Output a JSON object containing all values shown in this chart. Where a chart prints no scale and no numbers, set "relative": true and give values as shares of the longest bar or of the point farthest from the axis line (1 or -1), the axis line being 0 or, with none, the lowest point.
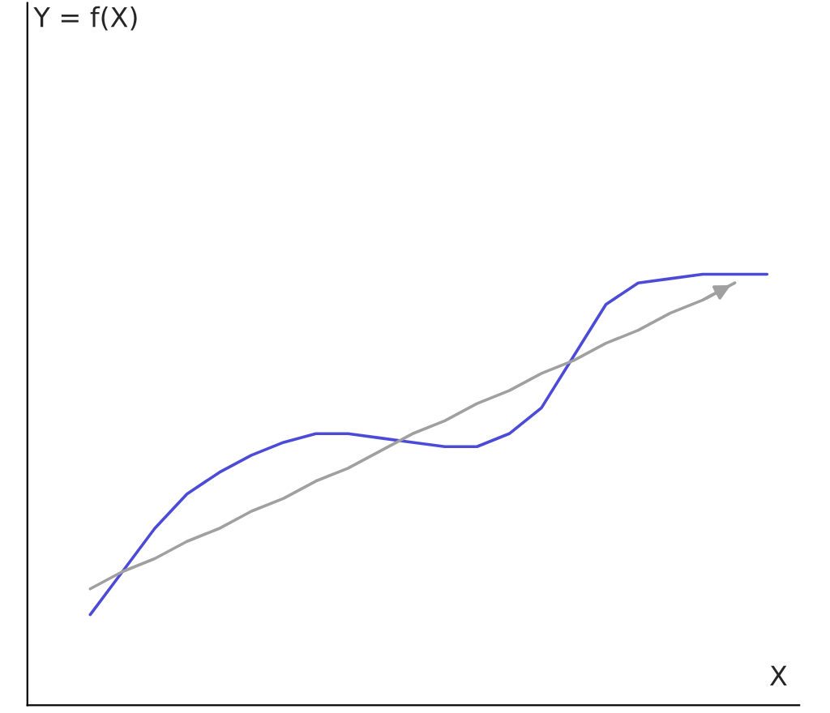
{
  "chart_data": {
    "type": "line",
    "relative": true,
    "xlabel": "X",
    "annotations": [
      "Y = f(X)"
    ],
    "legend": false,
    "categories": [
      null,
      null,
      null,
      null,
      null,
      null,
      null,
      null,
      null,
      null,
      null,
      null,
      null,
      null,
      null,
      null,
      null,
      null,
      null,
      null,
      null,
      null
    ],
    "series": [
      {
        "color": "#4b4bd8",
        "values": [
          0.21,
          0.31,
          0.41,
          0.49,
          0.54,
          0.58,
          0.61,
          0.63,
          0.63,
          0.62,
          0.61,
          0.6,
          0.6,
          0.63,
          0.69,
          0.81,
          0.93,
          0.98,
          0.99,
          1.0,
          1.0,
          1.0
        ]
      },
      {
        "color": "#a0a0a0",
        "values": [
          0.27,
          0.31,
          0.34,
          0.38,
          0.41,
          0.45,
          0.48,
          0.52,
          0.55,
          0.59,
          0.63,
          0.66,
          0.7,
          0.73,
          0.77,
          0.8,
          0.84,
          0.87,
          0.91,
          0.94,
          0.98,
          null
        ]
      }
    ]
  }
}
